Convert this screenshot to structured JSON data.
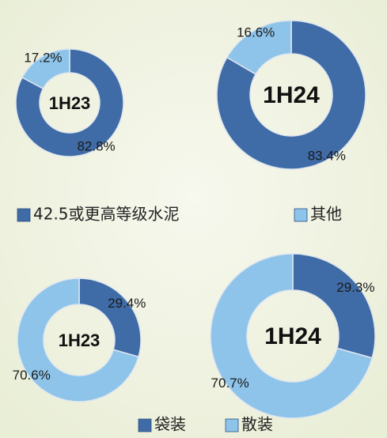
{
  "chart_data": [
    {
      "type": "pie",
      "categories": [
        "42.5或更高等级水泥",
        "其他"
      ],
      "colors": [
        "#3f6ba6",
        "#8ec4ea"
      ],
      "series": [
        {
          "name": "1H23",
          "values": [
            82.8,
            17.2
          ],
          "value_labels": [
            "82.8%",
            "17.2%"
          ]
        },
        {
          "name": "1H24",
          "values": [
            83.4,
            16.6
          ],
          "value_labels": [
            "83.4%",
            "16.6%"
          ]
        }
      ]
    },
    {
      "type": "pie",
      "categories": [
        "袋装",
        "散装"
      ],
      "colors": [
        "#3f6ba6",
        "#8ec4ea"
      ],
      "series": [
        {
          "name": "1H23",
          "values": [
            29.4,
            70.6
          ],
          "value_labels": [
            "29.4%",
            "70.6%"
          ]
        },
        {
          "name": "1H24",
          "values": [
            29.3,
            70.7
          ],
          "value_labels": [
            "29.3%",
            "70.7%"
          ]
        }
      ]
    }
  ]
}
